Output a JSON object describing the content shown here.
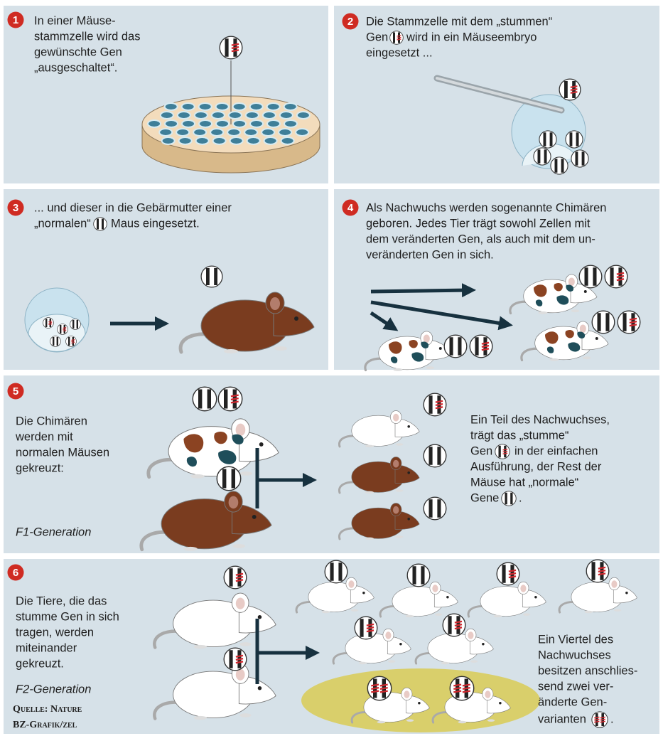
{
  "panels": [
    {
      "number": "1",
      "lines": [
        "In einer Mäuse-",
        "stammzelle wird das",
        "gewünschte Gen",
        "„ausgeschaltet“."
      ]
    },
    {
      "number": "2",
      "lines": [
        "Die Stammzelle mit dem „stummen“",
        [
          "Gen",
          "wird in ein Mäuseembryo"
        ],
        "eingesetzt ..."
      ]
    },
    {
      "number": "3",
      "lines": [
        "... und dieser in die Gebärmutter einer",
        [
          "„normalen“",
          "Maus eingesetzt."
        ]
      ]
    },
    {
      "number": "4",
      "lines": [
        "Als Nachwuchs werden sogenannte Chimären",
        "geboren. Jedes Tier trägt sowohl Zellen mit",
        "dem veränderten Gen, als auch mit dem un-",
        "veränderten Gen in sich."
      ]
    },
    {
      "number": "5",
      "lines": [
        "Die Chimären",
        "werden mit",
        "normalen Mäusen",
        "gekreuzt:"
      ],
      "generation": "F1-Generation",
      "lines_right": [
        "Ein Teil des Nachwuchses,",
        "trägt das „stumme“",
        [
          "Gen",
          "in der einfachen"
        ],
        "Ausführung, der Rest der",
        "Mäuse hat „normale“",
        [
          "Gene",
          "."
        ]
      ]
    },
    {
      "number": "6",
      "lines": [
        "Die Tiere, die das",
        "stumme Gen in sich",
        "tragen, werden",
        "miteinander",
        "gekreuzt."
      ],
      "generation": "F2-Generation",
      "lines_right": [
        "Ein Viertel des",
        "Nachwuchses",
        "besitzen anschlies-",
        "send zwei ver-",
        "änderte Gen-",
        [
          "varianten",
          "."
        ]
      ],
      "source": [
        "Quelle: Nature",
        "BZ-Grafik/zel"
      ]
    }
  ]
}
